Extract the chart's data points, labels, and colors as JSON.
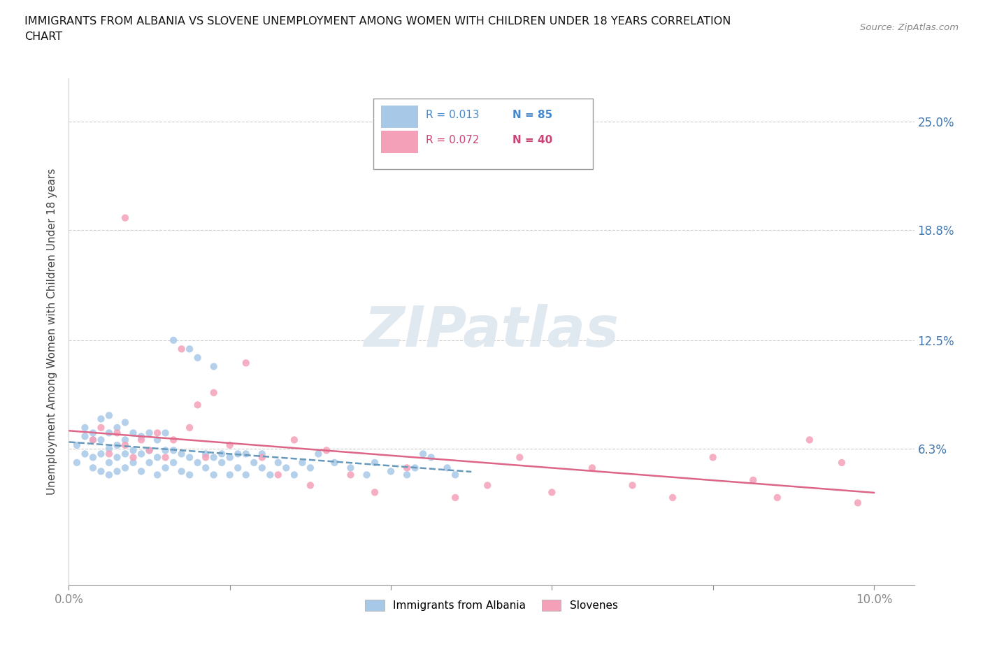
{
  "title_line1": "IMMIGRANTS FROM ALBANIA VS SLOVENE UNEMPLOYMENT AMONG WOMEN WITH CHILDREN UNDER 18 YEARS CORRELATION",
  "title_line2": "CHART",
  "source_text": "Source: ZipAtlas.com",
  "ylabel": "Unemployment Among Women with Children Under 18 years",
  "xlim": [
    0.0,
    0.105
  ],
  "ylim": [
    -0.015,
    0.275
  ],
  "ytick_values": [
    0.063,
    0.125,
    0.188,
    0.25
  ],
  "ytick_labels": [
    "6.3%",
    "12.5%",
    "18.8%",
    "25.0%"
  ],
  "grid_color": "#cccccc",
  "background_color": "#ffffff",
  "color_albania": "#a8c8e8",
  "color_slovene": "#f4a0b8",
  "trend_color_albania": "#6699bb",
  "trend_color_slovene": "#dd6688",
  "albania_x": [
    0.001,
    0.001,
    0.002,
    0.002,
    0.002,
    0.003,
    0.003,
    0.003,
    0.003,
    0.004,
    0.004,
    0.004,
    0.004,
    0.005,
    0.005,
    0.005,
    0.005,
    0.005,
    0.006,
    0.006,
    0.006,
    0.006,
    0.007,
    0.007,
    0.007,
    0.007,
    0.008,
    0.008,
    0.008,
    0.009,
    0.009,
    0.009,
    0.01,
    0.01,
    0.01,
    0.011,
    0.011,
    0.011,
    0.012,
    0.012,
    0.012,
    0.013,
    0.013,
    0.013,
    0.014,
    0.014,
    0.015,
    0.015,
    0.015,
    0.016,
    0.016,
    0.017,
    0.017,
    0.018,
    0.018,
    0.018,
    0.019,
    0.019,
    0.02,
    0.02,
    0.021,
    0.021,
    0.022,
    0.022,
    0.023,
    0.024,
    0.024,
    0.025,
    0.026,
    0.027,
    0.028,
    0.029,
    0.03,
    0.031,
    0.033,
    0.035,
    0.037,
    0.038,
    0.04,
    0.042,
    0.043,
    0.044,
    0.045,
    0.047,
    0.048
  ],
  "albania_y": [
    0.055,
    0.065,
    0.06,
    0.07,
    0.075,
    0.052,
    0.058,
    0.068,
    0.072,
    0.05,
    0.06,
    0.068,
    0.08,
    0.048,
    0.055,
    0.063,
    0.072,
    0.082,
    0.05,
    0.058,
    0.065,
    0.075,
    0.052,
    0.06,
    0.068,
    0.078,
    0.055,
    0.062,
    0.072,
    0.05,
    0.06,
    0.07,
    0.055,
    0.062,
    0.072,
    0.048,
    0.058,
    0.068,
    0.052,
    0.062,
    0.072,
    0.055,
    0.062,
    0.125,
    0.05,
    0.06,
    0.048,
    0.058,
    0.12,
    0.055,
    0.115,
    0.052,
    0.06,
    0.048,
    0.058,
    0.11,
    0.055,
    0.06,
    0.048,
    0.058,
    0.052,
    0.06,
    0.048,
    0.06,
    0.055,
    0.052,
    0.06,
    0.048,
    0.055,
    0.052,
    0.048,
    0.055,
    0.052,
    0.06,
    0.055,
    0.052,
    0.048,
    0.055,
    0.05,
    0.048,
    0.052,
    0.06,
    0.058,
    0.052,
    0.048
  ],
  "slovene_x": [
    0.003,
    0.004,
    0.005,
    0.006,
    0.007,
    0.007,
    0.008,
    0.009,
    0.01,
    0.011,
    0.012,
    0.013,
    0.014,
    0.015,
    0.016,
    0.017,
    0.018,
    0.02,
    0.022,
    0.024,
    0.026,
    0.028,
    0.03,
    0.032,
    0.035,
    0.038,
    0.042,
    0.048,
    0.052,
    0.056,
    0.06,
    0.065,
    0.07,
    0.075,
    0.08,
    0.085,
    0.088,
    0.092,
    0.096,
    0.098
  ],
  "slovene_y": [
    0.068,
    0.075,
    0.06,
    0.072,
    0.065,
    0.195,
    0.058,
    0.068,
    0.062,
    0.072,
    0.058,
    0.068,
    0.12,
    0.075,
    0.088,
    0.058,
    0.095,
    0.065,
    0.112,
    0.058,
    0.048,
    0.068,
    0.042,
    0.062,
    0.048,
    0.038,
    0.052,
    0.035,
    0.042,
    0.058,
    0.038,
    0.052,
    0.042,
    0.035,
    0.058,
    0.045,
    0.035,
    0.068,
    0.055,
    0.032
  ],
  "watermark_color": "#e0e8f0"
}
